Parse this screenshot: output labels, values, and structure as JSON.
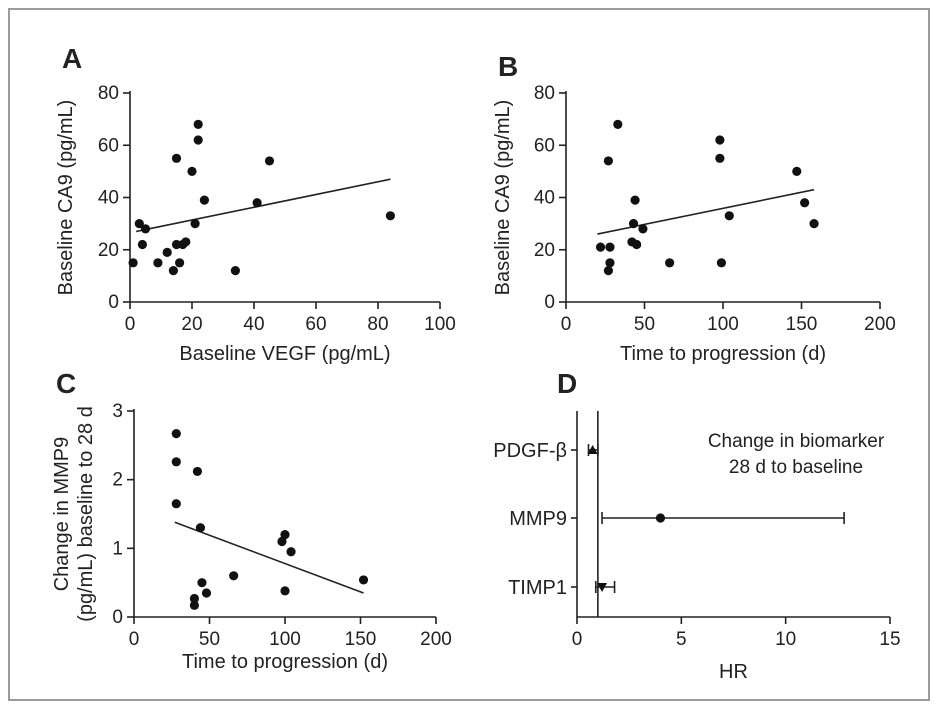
{
  "chart_data": [
    {
      "panel": "A",
      "type": "scatter",
      "xlabel": "Baseline VEGF (pg/mL)",
      "ylabel": "Baseline CA9 (pg/mL)",
      "xlim": [
        0,
        100
      ],
      "ylim": [
        0,
        80
      ],
      "xticks": [
        0,
        20,
        40,
        60,
        80,
        100
      ],
      "yticks": [
        0,
        20,
        40,
        60,
        80
      ],
      "points": [
        [
          1,
          15
        ],
        [
          3,
          30
        ],
        [
          4,
          22
        ],
        [
          5,
          28
        ],
        [
          9,
          15
        ],
        [
          12,
          19
        ],
        [
          14,
          12
        ],
        [
          15,
          55
        ],
        [
          15,
          22
        ],
        [
          16,
          15
        ],
        [
          17,
          22
        ],
        [
          18,
          23
        ],
        [
          20,
          50
        ],
        [
          21,
          30
        ],
        [
          22,
          68
        ],
        [
          22,
          62
        ],
        [
          24,
          39
        ],
        [
          34,
          12
        ],
        [
          41,
          38
        ],
        [
          45,
          54
        ],
        [
          84,
          33
        ]
      ],
      "fit_line": [
        [
          2,
          27
        ],
        [
          84,
          47
        ]
      ]
    },
    {
      "panel": "B",
      "type": "scatter",
      "xlabel": "Time to progression (d)",
      "ylabel": "Baseline CA9 (pg/mL)",
      "xlim": [
        0,
        200
      ],
      "ylim": [
        0,
        80
      ],
      "xticks": [
        0,
        50,
        100,
        150,
        200
      ],
      "yticks": [
        0,
        20,
        40,
        60,
        80
      ],
      "points": [
        [
          22,
          21
        ],
        [
          27,
          12
        ],
        [
          27,
          54
        ],
        [
          28,
          21
        ],
        [
          28,
          15
        ],
        [
          33,
          68
        ],
        [
          42,
          23
        ],
        [
          43,
          30
        ],
        [
          44,
          39
        ],
        [
          45,
          22
        ],
        [
          49,
          28
        ],
        [
          66,
          15
        ],
        [
          98,
          62
        ],
        [
          98,
          55
        ],
        [
          99,
          15
        ],
        [
          104,
          33
        ],
        [
          147,
          50
        ],
        [
          152,
          38
        ],
        [
          158,
          30
        ]
      ],
      "fit_line": [
        [
          20,
          26
        ],
        [
          158,
          43
        ]
      ]
    },
    {
      "panel": "C",
      "type": "scatter",
      "xlabel": "Time to progression (d)",
      "ylabel": "Change in MMP9 (pg/mL) baseline to 28 d",
      "ylabel_lines": [
        "Change in MMP9",
        "(pg/mL) baseline to 28 d"
      ],
      "xlim": [
        0,
        200
      ],
      "ylim": [
        0,
        3
      ],
      "xticks": [
        0,
        50,
        100,
        150,
        200
      ],
      "yticks": [
        0,
        1,
        2,
        3
      ],
      "points": [
        [
          28,
          2.67
        ],
        [
          28,
          2.26
        ],
        [
          28,
          1.65
        ],
        [
          40,
          0.27
        ],
        [
          40,
          0.17
        ],
        [
          42,
          2.12
        ],
        [
          44,
          1.3
        ],
        [
          45,
          0.5
        ],
        [
          48,
          0.35
        ],
        [
          66,
          0.6
        ],
        [
          98,
          1.1
        ],
        [
          100,
          1.2
        ],
        [
          100,
          0.38
        ],
        [
          104,
          0.95
        ],
        [
          152,
          0.54
        ]
      ],
      "fit_line": [
        [
          27,
          1.38
        ],
        [
          152,
          0.35
        ]
      ]
    },
    {
      "panel": "D",
      "type": "forest",
      "xlabel": "HR",
      "xlim": [
        0,
        15
      ],
      "xticks": [
        0,
        5,
        10,
        15
      ],
      "reference_line": 1,
      "annotation": [
        "Change in biomarker",
        "28 d to baseline"
      ],
      "rows": [
        {
          "label": "PDGF-β",
          "hr": 0.75,
          "lo": 0.55,
          "hi": 1.0,
          "marker": "triangle"
        },
        {
          "label": "MMP9",
          "hr": 4.0,
          "lo": 1.2,
          "hi": 12.8,
          "marker": "circle"
        },
        {
          "label": "TIMP1",
          "hr": 1.2,
          "lo": 0.9,
          "hi": 1.8,
          "marker": "triangle-down"
        }
      ]
    }
  ]
}
